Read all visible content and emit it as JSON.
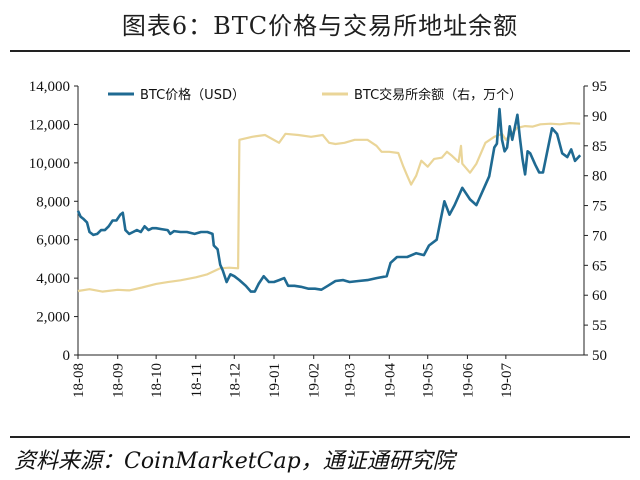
{
  "header": {
    "title": "图表6：BTC价格与交易所地址余额"
  },
  "footer": {
    "source": "资料来源：CoinMarketCap，通证通研究院"
  },
  "colors": {
    "price": "#1f6a92",
    "balance": "#ead598"
  },
  "chart_data": {
    "type": "line",
    "title": "图表6：BTC价格与交易所地址余额",
    "x_ticks": [
      "18-08",
      "18-09",
      "18-10",
      "18-11",
      "18-12",
      "19-01",
      "19-02",
      "19-03",
      "19-04",
      "19-05",
      "19-06",
      "19-07"
    ],
    "y_left": {
      "lim": [
        0,
        14000
      ],
      "ticks": [
        "0",
        "2,000",
        "4,000",
        "6,000",
        "8,000",
        "10,000",
        "12,000",
        "14,000"
      ]
    },
    "y_right": {
      "lim": [
        50,
        95
      ],
      "ticks": [
        "50",
        "55",
        "60",
        "65",
        "70",
        "75",
        "80",
        "85",
        "90",
        "95"
      ]
    },
    "legend_position": "top",
    "series": [
      {
        "name": "BTC价格（USD）",
        "axis": "left",
        "points": [
          [
            "2018-08-01",
            7500
          ],
          [
            "2018-08-03",
            7200
          ],
          [
            "2018-08-05",
            7100
          ],
          [
            "2018-08-08",
            6900
          ],
          [
            "2018-08-10",
            6400
          ],
          [
            "2018-08-13",
            6250
          ],
          [
            "2018-08-16",
            6300
          ],
          [
            "2018-08-19",
            6500
          ],
          [
            "2018-08-22",
            6500
          ],
          [
            "2018-08-25",
            6700
          ],
          [
            "2018-08-28",
            7000
          ],
          [
            "2018-08-31",
            7000
          ],
          [
            "2018-09-03",
            7300
          ],
          [
            "2018-09-05",
            7400
          ],
          [
            "2018-09-07",
            6500
          ],
          [
            "2018-09-10",
            6300
          ],
          [
            "2018-09-13",
            6400
          ],
          [
            "2018-09-16",
            6500
          ],
          [
            "2018-09-19",
            6400
          ],
          [
            "2018-09-22",
            6700
          ],
          [
            "2018-09-25",
            6500
          ],
          [
            "2018-09-28",
            6600
          ],
          [
            "2018-10-01",
            6600
          ],
          [
            "2018-10-05",
            6550
          ],
          [
            "2018-10-10",
            6500
          ],
          [
            "2018-10-12",
            6300
          ],
          [
            "2018-10-15",
            6450
          ],
          [
            "2018-10-20",
            6400
          ],
          [
            "2018-10-25",
            6400
          ],
          [
            "2018-10-31",
            6300
          ],
          [
            "2018-11-05",
            6400
          ],
          [
            "2018-11-10",
            6400
          ],
          [
            "2018-11-14",
            6300
          ],
          [
            "2018-11-15",
            5700
          ],
          [
            "2018-11-18",
            5500
          ],
          [
            "2018-11-20",
            4700
          ],
          [
            "2018-11-22",
            4400
          ],
          [
            "2018-11-25",
            3800
          ],
          [
            "2018-11-28",
            4200
          ],
          [
            "2018-12-01",
            4100
          ],
          [
            "2018-12-05",
            3900
          ],
          [
            "2018-12-10",
            3600
          ],
          [
            "2018-12-14",
            3300
          ],
          [
            "2018-12-17",
            3300
          ],
          [
            "2018-12-20",
            3700
          ],
          [
            "2018-12-24",
            4100
          ],
          [
            "2018-12-28",
            3800
          ],
          [
            "2019-01-01",
            3800
          ],
          [
            "2019-01-05",
            3900
          ],
          [
            "2019-01-09",
            4000
          ],
          [
            "2019-01-12",
            3600
          ],
          [
            "2019-01-17",
            3600
          ],
          [
            "2019-01-22",
            3550
          ],
          [
            "2019-01-28",
            3450
          ],
          [
            "2019-02-02",
            3450
          ],
          [
            "2019-02-07",
            3400
          ],
          [
            "2019-02-12",
            3600
          ],
          [
            "2019-02-18",
            3850
          ],
          [
            "2019-02-24",
            3900
          ],
          [
            "2019-03-01",
            3800
          ],
          [
            "2019-03-08",
            3850
          ],
          [
            "2019-03-15",
            3900
          ],
          [
            "2019-03-22",
            4000
          ],
          [
            "2019-03-30",
            4100
          ],
          [
            "2019-04-02",
            4800
          ],
          [
            "2019-04-07",
            5100
          ],
          [
            "2019-04-15",
            5100
          ],
          [
            "2019-04-22",
            5300
          ],
          [
            "2019-04-28",
            5200
          ],
          [
            "2019-05-02",
            5700
          ],
          [
            "2019-05-08",
            6000
          ],
          [
            "2019-05-11",
            7000
          ],
          [
            "2019-05-14",
            8000
          ],
          [
            "2019-05-18",
            7300
          ],
          [
            "2019-05-22",
            7800
          ],
          [
            "2019-05-28",
            8700
          ],
          [
            "2019-06-03",
            8100
          ],
          [
            "2019-06-08",
            7800
          ],
          [
            "2019-06-14",
            8700
          ],
          [
            "2019-06-18",
            9300
          ],
          [
            "2019-06-22",
            10800
          ],
          [
            "2019-06-24",
            11000
          ],
          [
            "2019-06-26",
            12800
          ],
          [
            "2019-06-28",
            11200
          ],
          [
            "2019-06-30",
            10600
          ],
          [
            "2019-07-02",
            10800
          ],
          [
            "2019-07-04",
            11900
          ],
          [
            "2019-07-06",
            11200
          ],
          [
            "2019-07-10",
            12500
          ],
          [
            "2019-07-12",
            11300
          ],
          [
            "2019-07-14",
            10200
          ],
          [
            "2019-07-16",
            9400
          ],
          [
            "2019-07-18",
            10600
          ],
          [
            "2019-07-20",
            10500
          ],
          [
            "2019-07-24",
            9900
          ],
          [
            "2019-07-27",
            9500
          ],
          [
            "2019-07-30",
            9500
          ],
          [
            "2019-08-02",
            10500
          ],
          [
            "2019-08-06",
            11800
          ],
          [
            "2019-08-10",
            11500
          ],
          [
            "2019-08-14",
            10500
          ],
          [
            "2019-08-18",
            10300
          ],
          [
            "2019-08-21",
            10700
          ],
          [
            "2019-08-24",
            10100
          ],
          [
            "2019-08-28",
            10400
          ]
        ]
      },
      {
        "name": "BTC交易所余额（右，万个）",
        "axis": "right",
        "points": [
          [
            "2018-08-01",
            60.7
          ],
          [
            "2018-08-10",
            61.0
          ],
          [
            "2018-08-20",
            60.6
          ],
          [
            "2018-09-01",
            60.9
          ],
          [
            "2018-09-10",
            60.8
          ],
          [
            "2018-09-20",
            61.3
          ],
          [
            "2018-10-01",
            61.9
          ],
          [
            "2018-10-10",
            62.2
          ],
          [
            "2018-10-20",
            62.5
          ],
          [
            "2018-11-01",
            63.0
          ],
          [
            "2018-11-10",
            63.5
          ],
          [
            "2018-11-20",
            64.5
          ],
          [
            "2018-11-27",
            64.6
          ],
          [
            "2018-12-04",
            64.5
          ],
          [
            "2018-12-05",
            86.0
          ],
          [
            "2018-12-15",
            86.5
          ],
          [
            "2018-12-25",
            86.8
          ],
          [
            "2019-01-05",
            85.5
          ],
          [
            "2019-01-10",
            87.0
          ],
          [
            "2019-01-20",
            86.8
          ],
          [
            "2019-01-30",
            86.5
          ],
          [
            "2019-02-08",
            86.8
          ],
          [
            "2019-02-13",
            85.5
          ],
          [
            "2019-02-18",
            85.3
          ],
          [
            "2019-02-25",
            85.5
          ],
          [
            "2019-03-05",
            86.0
          ],
          [
            "2019-03-15",
            86.0
          ],
          [
            "2019-03-22",
            85.0
          ],
          [
            "2019-03-26",
            84.0
          ],
          [
            "2019-04-01",
            84.0
          ],
          [
            "2019-04-08",
            83.8
          ],
          [
            "2019-04-12",
            81.5
          ],
          [
            "2019-04-15",
            80.0
          ],
          [
            "2019-04-18",
            78.5
          ],
          [
            "2019-04-22",
            80.0
          ],
          [
            "2019-04-26",
            82.5
          ],
          [
            "2019-05-01",
            81.5
          ],
          [
            "2019-05-06",
            82.8
          ],
          [
            "2019-05-12",
            83.0
          ],
          [
            "2019-05-16",
            84.0
          ],
          [
            "2019-05-20",
            83.3
          ],
          [
            "2019-05-25",
            82.3
          ],
          [
            "2019-05-27",
            85.0
          ],
          [
            "2019-05-28",
            82.0
          ],
          [
            "2019-06-03",
            80.5
          ],
          [
            "2019-06-08",
            82.0
          ],
          [
            "2019-06-15",
            85.5
          ],
          [
            "2019-06-22",
            86.5
          ],
          [
            "2019-06-28",
            87.0
          ],
          [
            "2019-07-01",
            86.0
          ],
          [
            "2019-07-06",
            87.2
          ],
          [
            "2019-07-10",
            88.0
          ],
          [
            "2019-07-16",
            88.3
          ],
          [
            "2019-07-22",
            88.2
          ],
          [
            "2019-07-28",
            88.6
          ],
          [
            "2019-08-05",
            88.7
          ],
          [
            "2019-08-12",
            88.6
          ],
          [
            "2019-08-20",
            88.8
          ],
          [
            "2019-08-28",
            88.7
          ]
        ]
      }
    ]
  }
}
